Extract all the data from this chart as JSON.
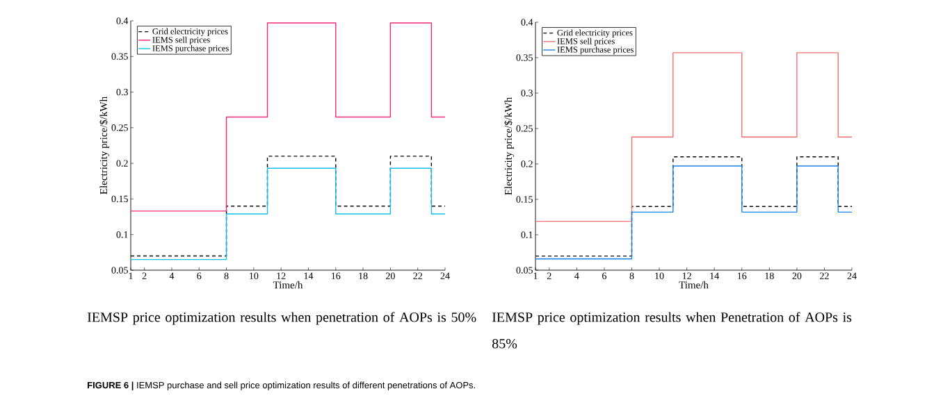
{
  "chart_data": [
    {
      "type": "step",
      "xlabel": "Time/h",
      "ylabel": "Electricity price/$/kWh",
      "x": [
        1,
        8,
        11,
        16,
        20,
        23,
        24
      ],
      "xlim": [
        1,
        24
      ],
      "xticks": [
        1,
        2,
        4,
        6,
        8,
        10,
        12,
        14,
        16,
        18,
        20,
        22,
        24
      ],
      "ylim": [
        0.05,
        0.4
      ],
      "yticks": [
        0.05,
        0.1,
        0.15,
        0.2,
        0.25,
        0.3,
        0.35,
        0.4
      ],
      "legend": "top left",
      "series": [
        {
          "name": "Grid electricity prices",
          "color": "#000000",
          "line_style": "dashed",
          "values": [
            0.07,
            0.14,
            0.21,
            0.14,
            0.21,
            0.14,
            0.14
          ]
        },
        {
          "name": "IEMS sell prices",
          "color": "#f0287a",
          "line_style": "solid",
          "values": [
            0.133,
            0.265,
            0.397,
            0.265,
            0.397,
            0.265,
            0.265
          ]
        },
        {
          "name": "IEMS purchase prices",
          "color": "#12c0ec",
          "line_style": "solid",
          "values": [
            0.065,
            0.129,
            0.193,
            0.129,
            0.193,
            0.129,
            0.129
          ]
        }
      ],
      "annotations": [
        "IEMSP price optimization results when penetration of AOPs is 50%",
        "**FIGURE 6 |** IEMSP purchase and sell price optimization results of different penetrations of AOPs."
      ]
    },
    {
      "type": "step",
      "xlabel": "Time/h",
      "ylabel": "Electricity price/$/kWh",
      "x": [
        1,
        8,
        11,
        16,
        20,
        23,
        24
      ],
      "xlim": [
        1,
        24
      ],
      "xticks": [
        1,
        2,
        4,
        6,
        8,
        10,
        12,
        14,
        16,
        18,
        20,
        22,
        24
      ],
      "ylim": [
        0.05,
        0.4
      ],
      "yticks": [
        0.05,
        0.1,
        0.15,
        0.2,
        0.25,
        0.3,
        0.35,
        0.4
      ],
      "legend": "top left",
      "series": [
        {
          "name": "Grid electricity prices",
          "color": "#000000",
          "line_style": "dashed",
          "values": [
            0.07,
            0.14,
            0.21,
            0.14,
            0.21,
            0.14,
            0.14
          ]
        },
        {
          "name": "IEMS sell prices",
          "color": "#f87171",
          "line_style": "solid",
          "values": [
            0.119,
            0.238,
            0.357,
            0.238,
            0.357,
            0.238,
            0.238
          ]
        },
        {
          "name": "IEMS purchase prices",
          "color": "#1a84f0",
          "line_style": "solid",
          "values": [
            0.066,
            0.132,
            0.197,
            0.132,
            0.197,
            0.132,
            0.132
          ]
        }
      ],
      "annotations": [
        "IEMSP price optimization results when Penetration of AOPs is 85%"
      ]
    }
  ]
}
